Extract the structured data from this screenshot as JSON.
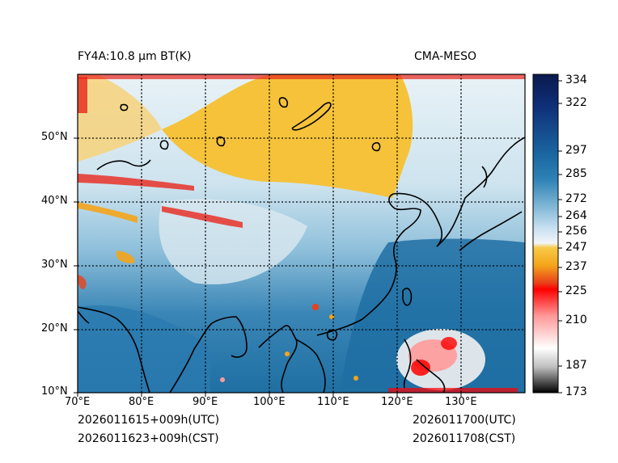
{
  "header": {
    "left_title": "FY4A:10.8 µm BT(K)",
    "right_title": "CMA-MESO"
  },
  "map": {
    "lon_labels": [
      "70°E",
      "80°E",
      "90°E",
      "100°E",
      "110°E",
      "120°E",
      "130°E"
    ],
    "lat_labels": [
      "10°N",
      "20°N",
      "30°N",
      "40°N",
      "50°N"
    ]
  },
  "colorbar": {
    "tick_labels": [
      "334",
      "322",
      "297",
      "285",
      "272",
      "264",
      "256",
      "247",
      "237",
      "225",
      "210",
      "187",
      "173"
    ]
  },
  "footer": {
    "left_utc": "2026011615+009h(UTC)",
    "left_cst": "2026011623+009h(CST)",
    "right_utc": "2026011700(UTC)",
    "right_cst": "2026011708(CST)"
  },
  "colors": {
    "warm_cloud_yellow": "#f5c23a",
    "cold_cloud_red": "#e8271c",
    "ocean_blue": "#1f6fa3",
    "land_light_blue": "#a9cde0",
    "colorbar_top_navy": "#0a1a4e"
  }
}
